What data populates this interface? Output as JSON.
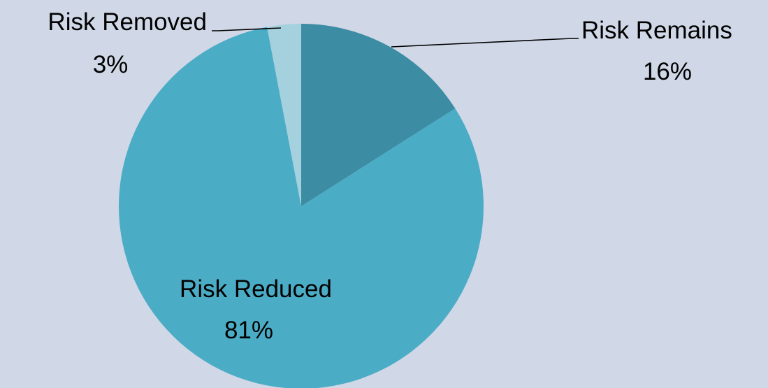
{
  "chart_data": {
    "type": "pie",
    "title": "",
    "start_angle_deg": 0,
    "direction": "clockwise",
    "slices": [
      {
        "label": "Risk Remains",
        "value": 16,
        "value_label": "16%",
        "color": "#3c8ca3"
      },
      {
        "label": "Risk Reduced",
        "value": 81,
        "value_label": "81%",
        "color": "#4bacc6"
      },
      {
        "label": "Risk Removed",
        "value": 3,
        "value_label": "3%",
        "color": "#a5d0de"
      }
    ],
    "legend": "none",
    "background_color": "#d0d7e6"
  }
}
